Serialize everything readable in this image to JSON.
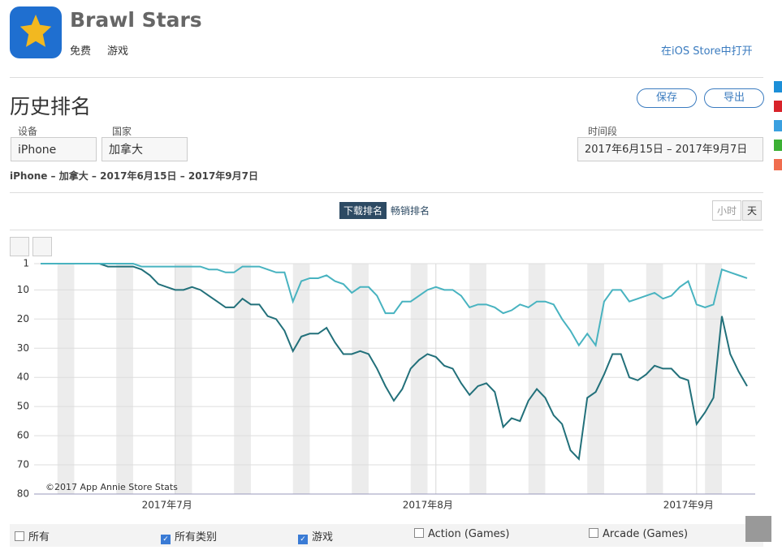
{
  "app": {
    "name": "Brawl Stars",
    "price": "免费",
    "genre": "游戏",
    "store_link": "在iOS Store中打开"
  },
  "section": {
    "title": "历史排名",
    "buttons": [
      "保存",
      "导出"
    ]
  },
  "filters": {
    "device": {
      "label": "设备",
      "value": "iPhone"
    },
    "country": {
      "label": "国家",
      "value": "加拿大"
    },
    "period": {
      "label": "时间段",
      "value": "2017年6月15日 – 2017年9月7日"
    }
  },
  "summary": "iPhone – 加拿大 – 2017年6月15日 – 2017年9月7日",
  "chart_tabs": [
    "下载排名",
    "畅销排名"
  ],
  "granularity": [
    "小时",
    "天"
  ],
  "chart_data": {
    "type": "line",
    "credit": "©2017 App Annie Store Stats",
    "xlim": [
      "2017-06-15",
      "2017-09-07"
    ],
    "xticks": [
      {
        "value": "2017-07",
        "label": "2017年7月"
      },
      {
        "value": "2017-08",
        "label": "2017年8月"
      },
      {
        "value": "2017-09",
        "label": "2017年9月"
      }
    ],
    "ylim": [
      1,
      80
    ],
    "y_inverted": true,
    "yticks": [
      1,
      10,
      20,
      30,
      40,
      50,
      60,
      70,
      80
    ],
    "grid": true,
    "series": [
      {
        "name": "所有类别",
        "color": "#22707a",
        "checked": true,
        "values": [
          1,
          1,
          1,
          1,
          1,
          1,
          1,
          1,
          2,
          2,
          2,
          2,
          3,
          5,
          8,
          9,
          10,
          10,
          9,
          10,
          12,
          14,
          16,
          16,
          13,
          15,
          15,
          19,
          20,
          24,
          31,
          26,
          25,
          25,
          23,
          28,
          32,
          32,
          31,
          32,
          37,
          43,
          48,
          44,
          37,
          34,
          32,
          33,
          36,
          37,
          42,
          46,
          43,
          42,
          45,
          57,
          54,
          55,
          48,
          44,
          47,
          53,
          56,
          65,
          68,
          47,
          45,
          39,
          32,
          32,
          40,
          41,
          39,
          36,
          37,
          37,
          40,
          41,
          56,
          52,
          47,
          19,
          32,
          38,
          43
        ]
      },
      {
        "name": "游戏",
        "color": "#48b3c0",
        "checked": true,
        "values": [
          1,
          1,
          1,
          1,
          1,
          1,
          1,
          1,
          1,
          1,
          1,
          1,
          2,
          2,
          2,
          2,
          2,
          2,
          2,
          2,
          3,
          3,
          4,
          4,
          2,
          2,
          2,
          3,
          4,
          4,
          14,
          7,
          6,
          6,
          5,
          7,
          8,
          11,
          9,
          9,
          12,
          18,
          18,
          14,
          14,
          12,
          10,
          9,
          10,
          10,
          12,
          16,
          15,
          15,
          16,
          18,
          17,
          15,
          16,
          14,
          14,
          15,
          20,
          24,
          29,
          25,
          29,
          14,
          10,
          10,
          14,
          13,
          12,
          11,
          13,
          12,
          9,
          7,
          15,
          16,
          15,
          3,
          4,
          5,
          6
        ]
      }
    ]
  },
  "other_categories": [
    {
      "label": "所有",
      "checked": false
    },
    {
      "label": "Action (Games)",
      "checked": false
    },
    {
      "label": "Arcade (Games)",
      "checked": false
    }
  ]
}
